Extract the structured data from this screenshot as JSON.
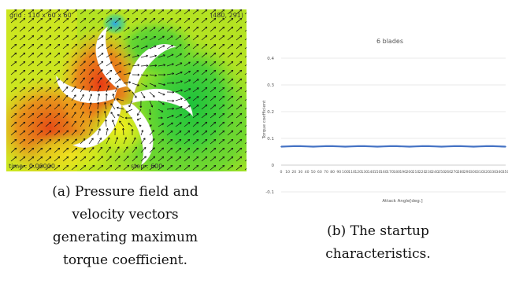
{
  "panel_a": {
    "overlay": {
      "grid": "grid : 110 x 60 x 60",
      "coords": "(480, 291)",
      "time": "time : 0.00000",
      "step": "step : 600"
    },
    "caption_lines": [
      "(a) Pressure field and",
      "velocity vectors",
      "generating maximum",
      "torque coefficient."
    ]
  },
  "panel_b": {
    "caption_lines": [
      "(b) The startup",
      "characteristics."
    ]
  },
  "chart_data": {
    "type": "line",
    "title": "6 blades",
    "xlabel": "Attack Angle[deg.]",
    "ylabel": "Torque coefficient",
    "ylim": [
      -0.1,
      0.4
    ],
    "yticks": [
      -0.1,
      0,
      0.1,
      0.2,
      0.3,
      0.4
    ],
    "ytick_labels": [
      "-0.1",
      "0",
      "0.1",
      "0.2",
      "0.3",
      "0.4"
    ],
    "xlim": [
      0,
      350
    ],
    "xticks": [
      0,
      10,
      20,
      30,
      40,
      50,
      60,
      70,
      80,
      90,
      100,
      110,
      120,
      130,
      140,
      150,
      160,
      170,
      180,
      190,
      200,
      210,
      220,
      230,
      240,
      250,
      260,
      270,
      280,
      290,
      300,
      310,
      320,
      330,
      340,
      350
    ],
    "grid": true,
    "legend": "none",
    "series": [
      {
        "color": "#4472c4",
        "x": [
          0,
          10,
          20,
          30,
          40,
          50,
          60,
          70,
          80,
          90,
          100,
          110,
          120,
          130,
          140,
          150,
          160,
          170,
          180,
          190,
          200,
          210,
          220,
          230,
          240,
          250,
          260,
          270,
          280,
          290,
          300,
          310,
          320,
          330,
          340,
          350
        ],
        "y": [
          0.069,
          0.07,
          0.071,
          0.071,
          0.07,
          0.069,
          0.07,
          0.071,
          0.071,
          0.07,
          0.069,
          0.07,
          0.071,
          0.071,
          0.07,
          0.069,
          0.07,
          0.071,
          0.071,
          0.07,
          0.069,
          0.07,
          0.071,
          0.071,
          0.07,
          0.069,
          0.07,
          0.071,
          0.071,
          0.07,
          0.069,
          0.07,
          0.071,
          0.071,
          0.07,
          0.069
        ]
      }
    ]
  }
}
